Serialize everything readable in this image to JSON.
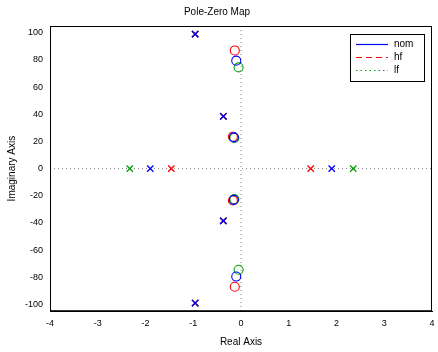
{
  "chart_data": {
    "type": "pole-zero",
    "title": "Pole-Zero Map",
    "x_label": "Real Axis",
    "y_label": "Imaginary Axis",
    "xlim": [
      -4,
      4
    ],
    "xticks": [
      -4,
      -3,
      -2,
      -1,
      0,
      1,
      2,
      3,
      4
    ],
    "ylim": [
      -105,
      105
    ],
    "yticks": [
      -100,
      -80,
      -60,
      -40,
      -20,
      0,
      20,
      40,
      60,
      80,
      100
    ],
    "grid": false,
    "legend": "upper right",
    "series": [
      {
        "name": "nom",
        "color": "#0000ff",
        "line_style": "solid",
        "poles": [
          [
            -1.9,
            0
          ],
          [
            1.9,
            0
          ],
          [
            -0.96,
            99
          ],
          [
            -0.96,
            -99
          ],
          [
            -0.37,
            38.5
          ],
          [
            -0.37,
            -38.5
          ]
        ],
        "zeros": [
          [
            -0.1,
            79.5
          ],
          [
            -0.1,
            -79.5
          ],
          [
            -0.15,
            23
          ],
          [
            -0.15,
            -23
          ]
        ]
      },
      {
        "name": "hf",
        "color": "#ff0000",
        "line_style": "dashed",
        "poles": [
          [
            -1.46,
            0
          ],
          [
            1.46,
            0
          ],
          [
            -0.96,
            99
          ],
          [
            -0.96,
            -99
          ],
          [
            -0.37,
            38.5
          ],
          [
            -0.37,
            -38.5
          ]
        ],
        "zeros": [
          [
            -0.13,
            87
          ],
          [
            -0.13,
            -87
          ],
          [
            -0.17,
            23.5
          ],
          [
            -0.17,
            -23.5
          ]
        ]
      },
      {
        "name": "lf",
        "color": "#00a000",
        "line_style": "dotted",
        "poles": [
          [
            -2.33,
            0
          ],
          [
            2.35,
            0
          ],
          [
            -0.96,
            99
          ],
          [
            -0.96,
            -99
          ],
          [
            -0.37,
            38.5
          ],
          [
            -0.37,
            -38.5
          ]
        ],
        "zeros": [
          [
            -0.05,
            74.5
          ],
          [
            -0.05,
            -74.5
          ],
          [
            -0.14,
            22.5
          ],
          [
            -0.14,
            -22.5
          ]
        ]
      }
    ]
  }
}
